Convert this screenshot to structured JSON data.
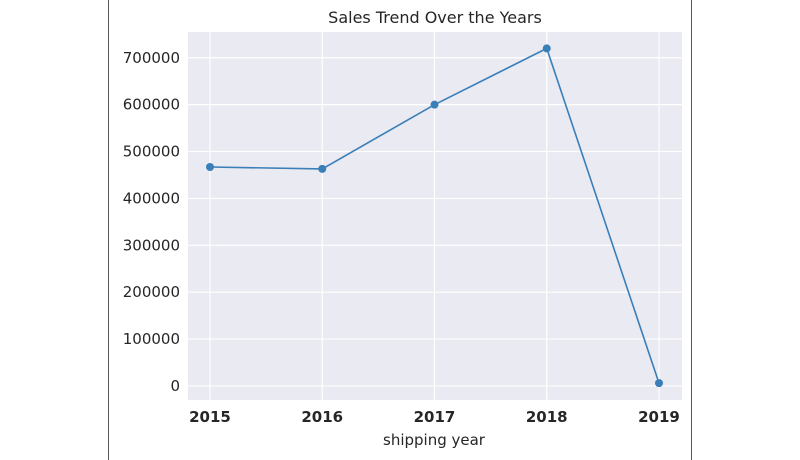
{
  "chart_data": {
    "type": "line",
    "title": "Sales Trend Over the Years",
    "xlabel": "shipping year",
    "ylabel": "",
    "x": [
      "2015",
      "2016",
      "2017",
      "2018",
      "2019"
    ],
    "series": [
      {
        "values": [
          467000,
          463000,
          600000,
          720000,
          6000
        ],
        "color": "#3a7fb8"
      }
    ],
    "yticks": [
      0,
      100000,
      200000,
      300000,
      400000,
      500000,
      600000,
      700000
    ],
    "ylim": [
      -30000,
      755000
    ],
    "grid": true,
    "background": "#eaeaf2",
    "grid_color": "#ffffff"
  }
}
